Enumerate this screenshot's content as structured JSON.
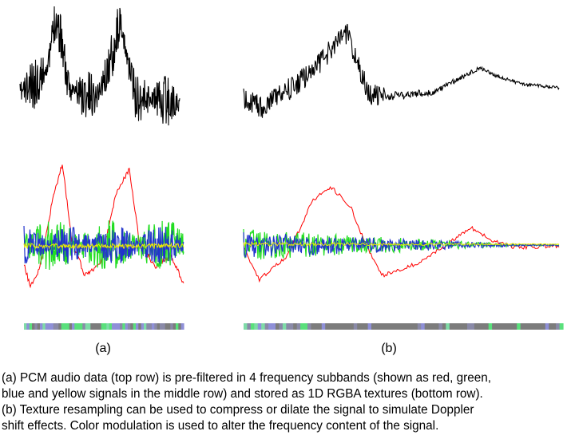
{
  "figure": {
    "panels": [
      {
        "id": "a",
        "label": "(a)"
      },
      {
        "id": "b",
        "label": "(b)"
      }
    ],
    "signal_colors": {
      "pcm": "#000000",
      "band1": "#ff0000",
      "band2": "#22dd22",
      "band3": "#2233cc",
      "band4": "#eeee00"
    },
    "texture_colors": [
      "#7fdca8",
      "#8f90d8",
      "#7c7c7c",
      "#5ae07c",
      "#8a8aa8"
    ]
  },
  "caption": {
    "line1": "(a) PCM audio data (top row) is pre-filtered in 4 frequency subbands (shown as red, green,",
    "line2": "blue and yellow signals in the middle row) and stored as 1D RGBA textures (bottom row).",
    "line3": "(b) Texture resampling can be used to compress or dilate the signal to simulate Doppler",
    "line4": "shift effects. Color modulation is used to alter the frequency content of the signal.",
    "line5": ""
  }
}
